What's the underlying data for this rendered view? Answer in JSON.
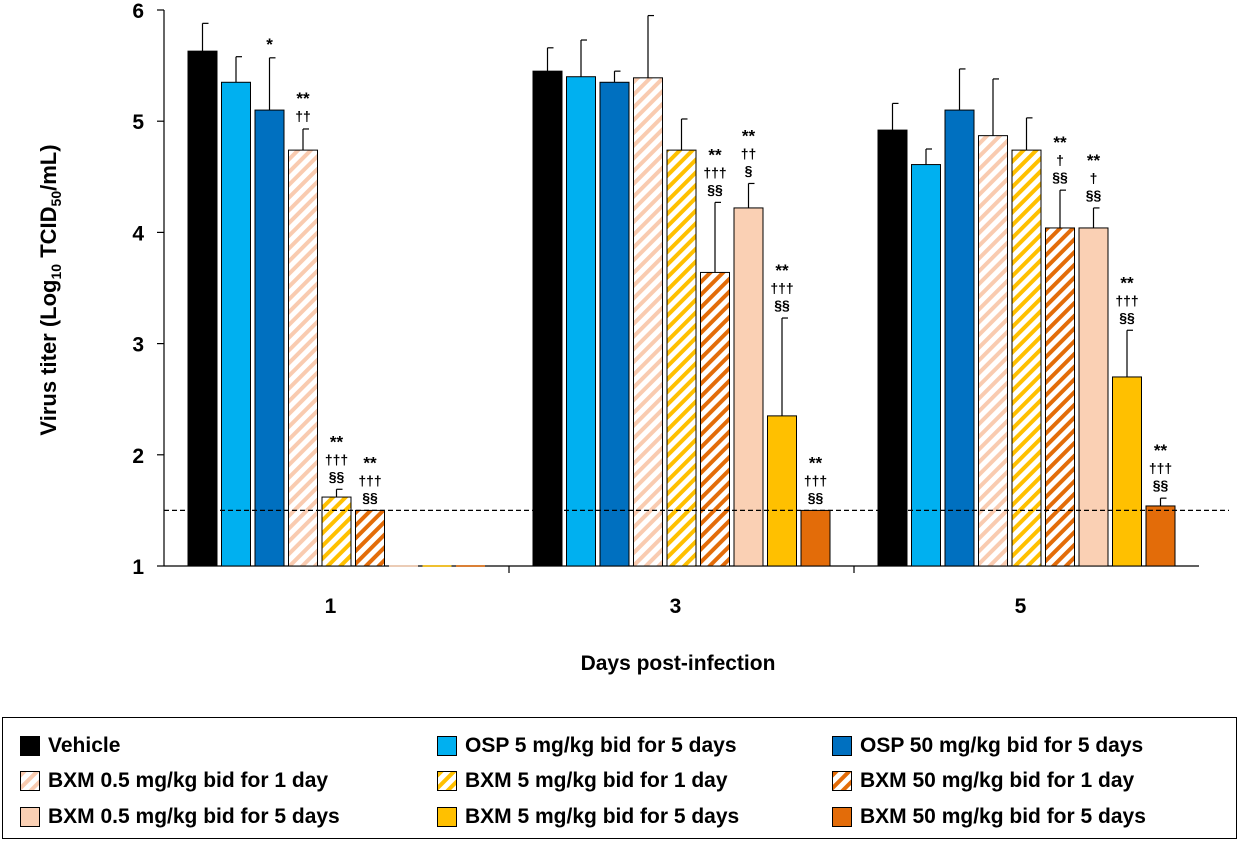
{
  "chart_data": {
    "type": "bar",
    "title": "",
    "xlabel": "Days post-infection",
    "ylabel_main": "Virus titer (Log",
    "ylabel_sub": "10",
    "ylabel_mid": " TCID",
    "ylabel_sub2": "50",
    "ylabel_end": "/mL)",
    "ylim": [
      1,
      6
    ],
    "yticks": [
      "1",
      "2",
      "3",
      "4",
      "5",
      "6"
    ],
    "categories": [
      "1",
      "3",
      "5"
    ],
    "detection_limit": 1.5,
    "series": [
      {
        "name": "Vehicle",
        "color": "#000000",
        "pattern": "solid",
        "values": [
          5.63,
          5.45,
          4.92
        ],
        "errors": [
          0.25,
          0.21,
          0.24
        ],
        "annotations": [
          "",
          "",
          ""
        ]
      },
      {
        "name": "OSP 5 mg/kg bid for 5 days",
        "color": "#00B0F0",
        "pattern": "solid",
        "values": [
          5.35,
          5.4,
          4.61
        ],
        "errors": [
          0.23,
          0.33,
          0.14
        ],
        "annotations": [
          "",
          "",
          ""
        ]
      },
      {
        "name": "OSP 50 mg/kg bid for 5 days",
        "color": "#0070C0",
        "pattern": "solid",
        "values": [
          5.1,
          5.35,
          5.1
        ],
        "errors": [
          0.47,
          0.1,
          0.37
        ],
        "annotations": [
          "*",
          "",
          ""
        ]
      },
      {
        "name": "BXM 0.5 mg/kg bid for 1 day",
        "color": "#F9CBB0",
        "pattern": "hatch",
        "values": [
          4.74,
          5.39,
          4.87
        ],
        "errors": [
          0.19,
          0.56,
          0.51
        ],
        "annotations": [
          "**\n††",
          "",
          ""
        ]
      },
      {
        "name": "BXM 5 mg/kg bid for 1 day",
        "color": "#FFC000",
        "pattern": "hatch",
        "values": [
          1.62,
          4.74,
          4.74
        ],
        "errors": [
          0.07,
          0.28,
          0.29
        ],
        "annotations": [
          "**\n†††\n§§",
          "",
          ""
        ]
      },
      {
        "name": "BXM 50 mg/kg bid for 1 day",
        "color": "#E36C09",
        "pattern": "hatch",
        "values": [
          1.5,
          3.64,
          4.04
        ],
        "errors": [
          0,
          0.63,
          0.34
        ],
        "annotations": [
          "**\n†††\n§§",
          "**\n†††\n§§",
          "**\n†\n§§"
        ]
      },
      {
        "name": "BXM 0.5 mg/kg bid for 5 days",
        "color": "#FAD0B4",
        "pattern": "solid",
        "values": [
          null,
          4.22,
          4.04
        ],
        "errors": [
          null,
          0.22,
          0.18
        ],
        "annotations": [
          "",
          "**\n††\n§",
          "**\n†\n§§"
        ]
      },
      {
        "name": "BXM 5 mg/kg bid for 5 days",
        "color": "#FFC000",
        "pattern": "solid",
        "values": [
          null,
          2.35,
          2.7
        ],
        "errors": [
          null,
          0.88,
          0.42
        ],
        "annotations": [
          "",
          "**\n†††\n§§",
          "**\n†††\n§§"
        ]
      },
      {
        "name": "BXM 50 mg/kg bid for 5 days",
        "color": "#E36C09",
        "pattern": "solid",
        "values": [
          null,
          1.5,
          1.54
        ],
        "errors": [
          null,
          0,
          0.07
        ],
        "annotations": [
          "",
          "**\n†††\n§§",
          "**\n†††\n§§"
        ]
      }
    ]
  },
  "legend": {
    "items": [
      "Vehicle",
      "OSP 5 mg/kg bid for 5 days",
      "OSP 50 mg/kg bid for 5 days",
      "BXM 0.5 mg/kg bid for 1 day",
      "BXM 5 mg/kg bid for 1 day",
      "BXM 50 mg/kg bid for 1 day",
      "BXM 0.5 mg/kg bid for 5 days",
      "BXM 5 mg/kg bid for 5 days",
      "BXM 50 mg/kg bid for 5 days"
    ]
  }
}
